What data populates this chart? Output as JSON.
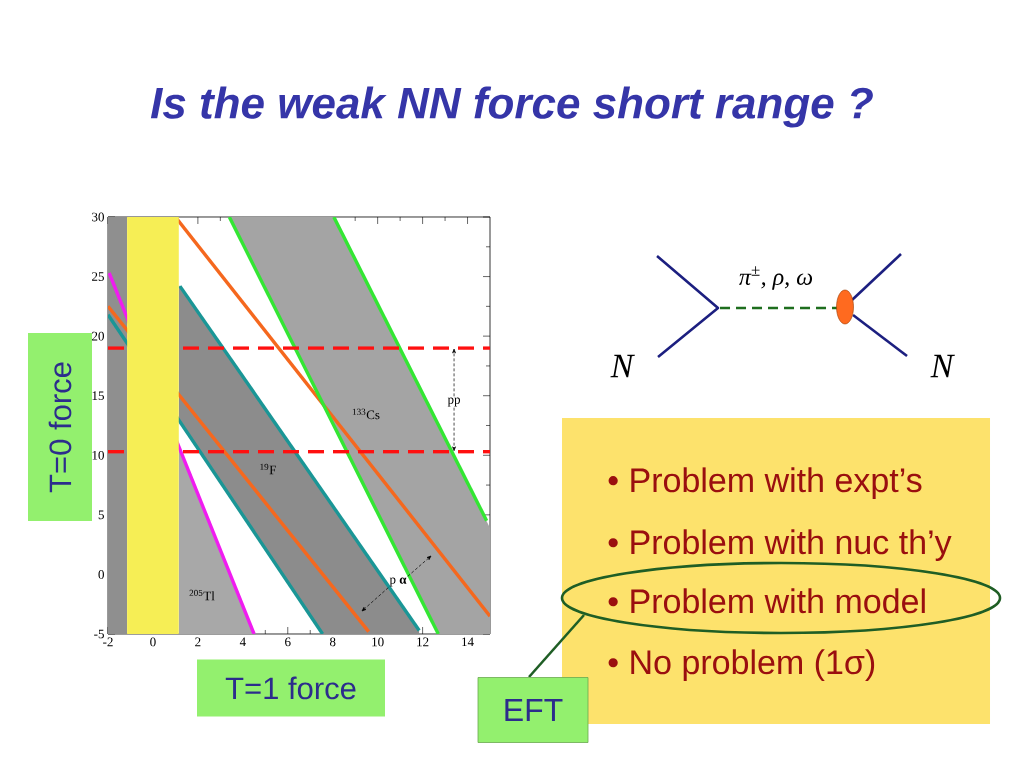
{
  "chart_data": {
    "type": "line",
    "title": "Is the weak NN force short range ?",
    "xlabel": "T=1 force",
    "ylabel": "T=0 force",
    "xlim": [
      -2,
      15
    ],
    "ylim": [
      -5,
      30
    ],
    "xticks": [
      -2,
      0,
      2,
      4,
      6,
      8,
      10,
      12,
      14
    ],
    "yticks": [
      -5,
      0,
      5,
      10,
      15,
      20,
      25,
      30
    ],
    "series": [
      {
        "x": [
          -2,
          -1.15
        ],
        "values": [
          null,
          null
        ],
        "lower": [
          -5,
          -5
        ],
        "upper": [
          30,
          30
        ],
        "color": "#8f8f8f"
      },
      {
        "x": [
          1.15,
          7.55,
          11.85
        ],
        "values": [
          null,
          null,
          null
        ],
        "lower": [
          13.0,
          -5,
          -5
        ],
        "upper": [
          24.3,
          6.9,
          -4.7
        ],
        "color": "#8c8c8c"
      },
      {
        "x": [
          1.15,
          4.5
        ],
        "values": [
          null,
          null
        ],
        "lower": [
          -5,
          -5
        ],
        "upper": [
          10.7,
          -5
        ],
        "color": "#a8a8a8"
      },
      {
        "x": [
          3.4,
          8.05,
          12.7,
          15
        ],
        "values": [
          null,
          null,
          null,
          null
        ],
        "lower": [
          30,
          12.5,
          -5,
          -5
        ],
        "upper": [
          30,
          30,
          12.6,
          3.9
        ],
        "color": "#a4a4a4"
      },
      {
        "x": [
          -1.95,
          4.5
        ],
        "values": [
          25.3,
          -5
        ],
        "color": "#f01cf0"
      },
      {
        "x": [
          -2,
          9.6
        ],
        "values": [
          22.5,
          -4.8
        ],
        "color": "#f5681e"
      },
      {
        "x": [
          1.0,
          15
        ],
        "values": [
          30,
          -3.5
        ],
        "color": "#f5681e"
      },
      {
        "x": [
          -2,
          7.55
        ],
        "values": [
          21.8,
          -5
        ],
        "color": "#1a9696"
      },
      {
        "x": [
          1.2,
          11.85
        ],
        "values": [
          24.2,
          -4.7
        ],
        "color": "#1a9696"
      },
      {
        "x": [
          3.4,
          12.7
        ],
        "values": [
          30,
          -5
        ],
        "color": "#33e633"
      },
      {
        "x": [
          8.05,
          14.85
        ],
        "values": [
          30,
          4.5
        ],
        "color": "#33e633"
      }
    ],
    "ref_lines": [
      {
        "axis": "y",
        "value": 19,
        "color": "#ff1010",
        "line_style": "dashed"
      },
      {
        "axis": "y",
        "value": 10.3,
        "color": "#ff1010",
        "line_style": "dashed"
      }
    ],
    "bands": [
      {
        "axis": "x",
        "from": -1.15,
        "to": 1.15,
        "color": "#f6ee55"
      }
    ],
    "annotations": [
      {
        "text": "pp",
        "x": 13.4,
        "y": 19
      },
      "$^{133}$Cs",
      "$^{19}$F",
      "$^{205}$Tl",
      "p **α**",
      "π$^{±}$, ρ, ω",
      "N",
      "N",
      "• Problem with expt’s",
      "• Problem with nuc th’y",
      "• Problem with model",
      "• No problem (1σ)",
      "EFT"
    ]
  }
}
